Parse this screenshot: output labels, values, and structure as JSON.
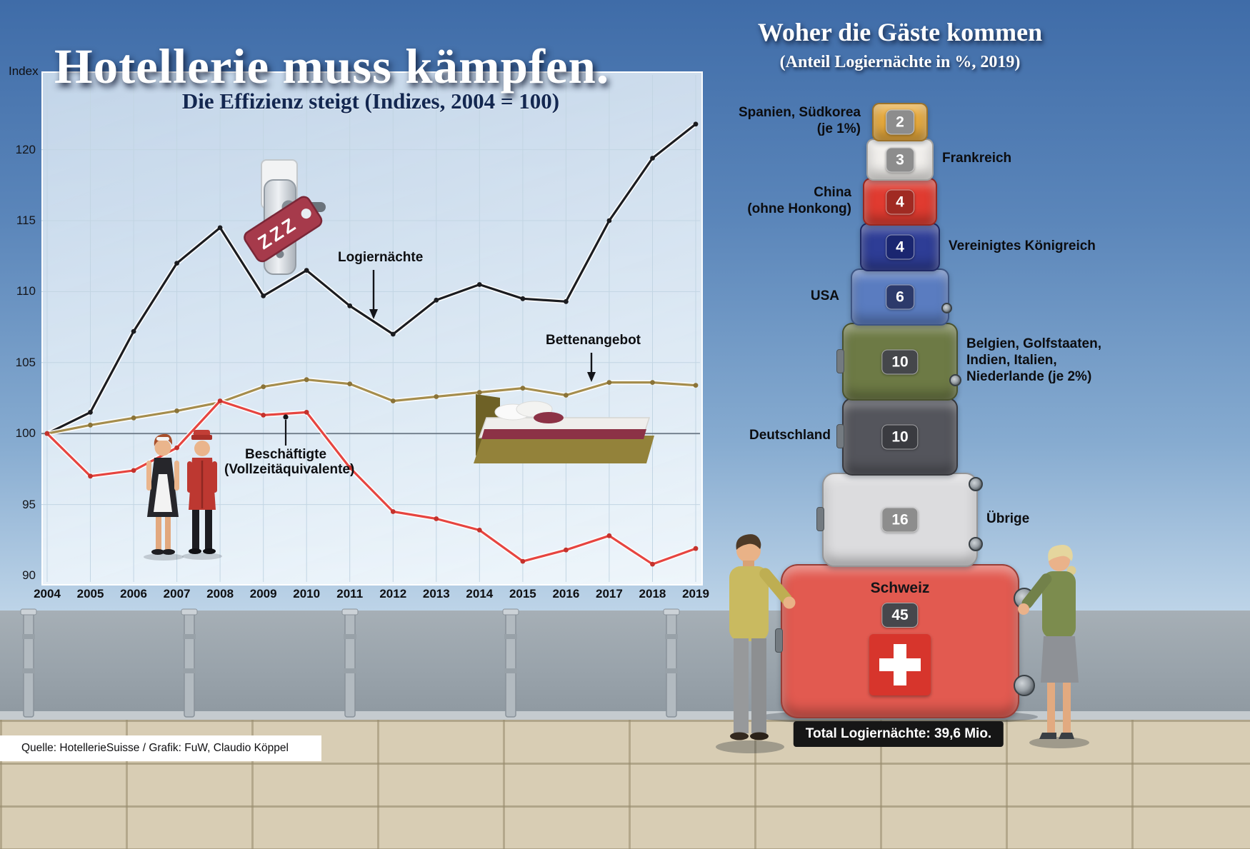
{
  "header": {
    "title": "Hotellerie muss kämpfen."
  },
  "left_chart": {
    "annotations": {
      "logier": "Logiernächte",
      "betten": "Bettenangebot",
      "besch_line1": "Beschäftigte",
      "besch_line2": "(Vollzeitäquivalente)"
    }
  },
  "decor": {
    "door_tag_text": "ZZZ"
  },
  "chart_data": [
    {
      "type": "line",
      "title": "Die Effizienz steigt (Indizes, 2004 = 100)",
      "ylabel": "Index",
      "x": [
        2004,
        2005,
        2006,
        2007,
        2008,
        2009,
        2010,
        2011,
        2012,
        2013,
        2014,
        2015,
        2016,
        2017,
        2018,
        2019
      ],
      "ylim": [
        90,
        125
      ],
      "yticks": [
        90,
        95,
        100,
        105,
        110,
        115,
        120
      ],
      "grid": true,
      "series": [
        {
          "name": "Logiernächte",
          "color": "#1b1c20",
          "marker": "#1b1c20",
          "values": [
            100,
            101.5,
            107.2,
            112,
            114.5,
            109.7,
            111.5,
            109,
            107,
            109.4,
            110.5,
            109.5,
            109.3,
            115,
            119.4,
            121.8
          ]
        },
        {
          "name": "Bettenangebot",
          "color": "#a58d4d",
          "marker": "#8a7338",
          "values": [
            100,
            100.6,
            101.1,
            101.6,
            102.2,
            103.3,
            103.8,
            103.5,
            102.3,
            102.6,
            102.9,
            103.2,
            102.7,
            103.6,
            103.6,
            103.4
          ]
        },
        {
          "name": "Beschäftigte (Vollzeitäquivalente)",
          "color": "#e64540",
          "marker": "#c3322c",
          "values": [
            100,
            97,
            97.4,
            99,
            102.3,
            101.3,
            101.5,
            97.6,
            94.5,
            94,
            93.2,
            91,
            91.8,
            92.8,
            90.8,
            91.9
          ]
        }
      ]
    },
    {
      "type": "bar",
      "title": "Woher die Gäste kommen",
      "subtitle": "(Anteil Logiernächte in %, 2019)",
      "categories": [
        "Spanien, Südkorea (je 1%)",
        "Frankreich",
        "China (ohne Honkong)",
        "Vereinigtes Königreich",
        "USA",
        "Belgien, Golfstaaten, Indien, Italien, Niederlande (je 2%)",
        "Deutschland",
        "Übrige",
        "Schweiz"
      ],
      "values": [
        2,
        3,
        4,
        4,
        6,
        10,
        10,
        16,
        45
      ],
      "colors": [
        "#e7a93b",
        "#f1efec",
        "#e03b30",
        "#2e3d96",
        "#5a7cc0",
        "#6d7a45",
        "#54555c",
        "#dcdcde",
        "#e25a50"
      ],
      "badge_colors": [
        "#8d8d8d",
        "#8d8d8d",
        "#a02a22",
        "#1a2670",
        "#2c3a6b",
        "#45474b",
        "#3a3b40",
        "#8d8d8d",
        "#46474c"
      ],
      "label_sides": [
        "left",
        "right",
        "left",
        "right",
        "left",
        "right",
        "left",
        "right",
        "center"
      ],
      "label_lines": [
        [
          "Spanien, Südkorea",
          "(je 1%)"
        ],
        [
          "Frankreich"
        ],
        [
          "China",
          "(ohne Honkong)"
        ],
        [
          "Vereinigtes Königreich"
        ],
        [
          "USA"
        ],
        [
          "Belgien, Golfstaaten,",
          "Indien, Italien,",
          "Niederlande (je 2%)"
        ],
        [
          "Deutschland"
        ],
        [
          "Übrige"
        ],
        [
          "Schweiz"
        ]
      ],
      "total_label": "Total Logiernächte: 39,6 Mio."
    }
  ],
  "source": "Quelle: HotellerieSuisse / Grafik: FuW, Claudio Köppel"
}
